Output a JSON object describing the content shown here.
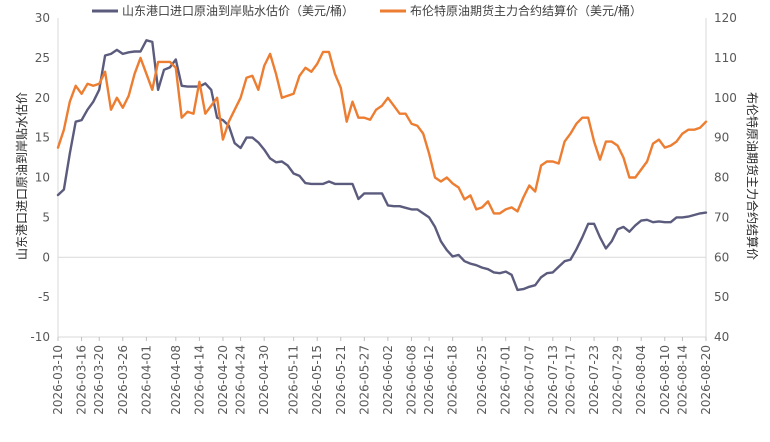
{
  "chart_data": {
    "type": "line",
    "dual_axis": true,
    "ylabel_left": "山东港口进口原油到岸贴水估价",
    "ylabel_right": "布伦特原油期货主力合约结算价",
    "ylim_left": [
      -10,
      30
    ],
    "ylim_right": [
      40,
      120
    ],
    "yticks_left": [
      "30",
      "25",
      "20",
      "15",
      "10",
      "5",
      "0",
      "-5",
      "-10"
    ],
    "yticks_right": [
      "120",
      "110",
      "100",
      "90",
      "80",
      "70",
      "60",
      "50",
      "40"
    ],
    "x_tick_labels": [
      "2026-03-10",
      "2026-03-16",
      "2026-03-20",
      "2026-03-26",
      "2026-04-01",
      "2026-04-08",
      "2026-04-14",
      "2026-04-20",
      "2026-04-24",
      "2026-04-30",
      "2026-05-11",
      "2026-05-15",
      "2026-05-21",
      "2026-05-27",
      "2026-06-02",
      "2026-06-08",
      "2026-06-12",
      "2026-06-18",
      "2026-06-25",
      "2026-07-01",
      "2026-07-07",
      "2026-07-13",
      "2026-07-17",
      "2026-07-23",
      "2026-07-29",
      "2026-08-04",
      "2026-08-10",
      "2026-08-14",
      "2026-08-20"
    ],
    "x_tick_positions": [
      0,
      4,
      7,
      11,
      15,
      20,
      24,
      28,
      31,
      35,
      40,
      44,
      48,
      52,
      56,
      60,
      63,
      67,
      72,
      76,
      80,
      84,
      87,
      91,
      95,
      99,
      103,
      106,
      110
    ],
    "grid": "horizontal-zero-line",
    "legend_position": "top",
    "series": [
      {
        "name": "山东港口进口原油到岸贴水估价（美元/桶）",
        "axis": "left",
        "color": "#5b5b7d",
        "values": [
          7.8,
          8.5,
          13,
          17,
          17.2,
          18.5,
          19.5,
          21,
          25.3,
          25.5,
          26,
          25.5,
          25.7,
          25.8,
          25.8,
          27.2,
          27,
          21,
          23.5,
          23.8,
          24.8,
          21.5,
          21.4,
          21.4,
          21.4,
          21.8,
          21,
          17.5,
          17.2,
          16.5,
          14.3,
          13.7,
          15,
          15,
          14.4,
          13.5,
          12.4,
          11.9,
          12,
          11.5,
          10.5,
          10.2,
          9.3,
          9.2,
          9.2,
          9.2,
          9.5,
          9.2,
          9.2,
          9.2,
          9.2,
          7.3,
          8,
          8,
          8,
          8,
          6.5,
          6.4,
          6.4,
          6.2,
          6,
          6,
          5.5,
          5,
          3.8,
          2,
          0.9,
          0.1,
          0.3,
          -0.5,
          -0.8,
          -1,
          -1.3,
          -1.5,
          -1.9,
          -2,
          -1.8,
          -2.2,
          -4.1,
          -4,
          -3.7,
          -3.5,
          -2.5,
          -2,
          -1.9,
          -1.2,
          -0.5,
          -0.3,
          1,
          2.5,
          4.2,
          4.2,
          2.5,
          1.1,
          2,
          3.5,
          3.8,
          3.2,
          4,
          4.6,
          4.7,
          4.4,
          4.5,
          4.4,
          4.4,
          5,
          5,
          5.1,
          5.3,
          5.5,
          5.6
        ]
      },
      {
        "name": "布伦特原油期货主力合约结算价（美元/桶）",
        "axis": "right",
        "color": "#ed7d31",
        "values": [
          87.5,
          92,
          99,
          103,
          101,
          103.5,
          103,
          103.5,
          106.5,
          97,
          100,
          97.5,
          100.5,
          106,
          110,
          106,
          102,
          109,
          109,
          109,
          107.5,
          95,
          96.5,
          96,
          104,
          96,
          98,
          100,
          89.5,
          94,
          97,
          100,
          105,
          105.5,
          102,
          108,
          111,
          106,
          100,
          100.5,
          101,
          105.5,
          107.5,
          106.5,
          108.5,
          111.5,
          111.5,
          106,
          102.5,
          94,
          99,
          95,
          95,
          94.5,
          97,
          98,
          100,
          98,
          96,
          96,
          93.5,
          93,
          91,
          86,
          80,
          79,
          80,
          78.5,
          77.5,
          74.5,
          75.5,
          72,
          72.5,
          74,
          71,
          71,
          72,
          72.5,
          71.5,
          75,
          78,
          76.5,
          83,
          84,
          84,
          83.5,
          89,
          91,
          93.5,
          95,
          95,
          89,
          84.5,
          89,
          89,
          88,
          85,
          80,
          80,
          82,
          84,
          88.5,
          89.5,
          87.5,
          88,
          89,
          91,
          92,
          92,
          92.5,
          94
        ]
      }
    ]
  }
}
